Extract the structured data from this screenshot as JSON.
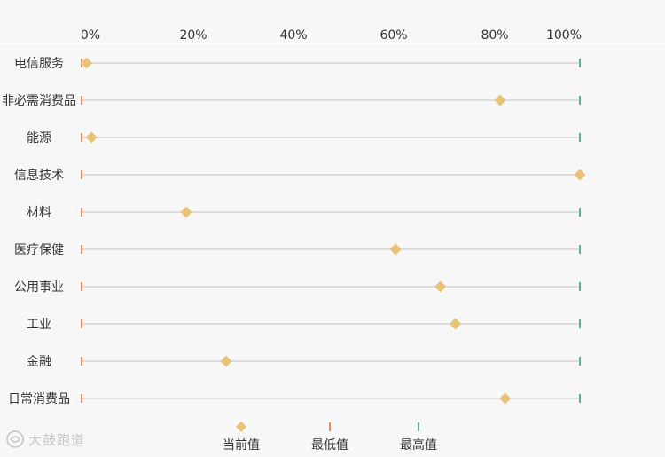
{
  "chart_data": {
    "type": "scatter",
    "subtype": "range-dot-plot",
    "title": "",
    "xlabel": "",
    "ylabel": "",
    "xlim": [
      0,
      100
    ],
    "x_ticks": [
      "0%",
      "20%",
      "40%",
      "60%",
      "80%",
      "100%"
    ],
    "categories": [
      "电信服务",
      "非必需消费品",
      "能源",
      "信息技术",
      "材料",
      "医疗保健",
      "公用事业",
      "工业",
      "金融",
      "日常消费品"
    ],
    "series": [
      {
        "name": "当前值",
        "marker": "diamond",
        "color": "#e8c277",
        "values": [
          1,
          84,
          2,
          100,
          21,
          63,
          72,
          75,
          29,
          85
        ]
      },
      {
        "name": "最低值",
        "marker": "tick",
        "color": "#e48a5c",
        "values": [
          0,
          0,
          0,
          0,
          0,
          0,
          0,
          0,
          0,
          0
        ]
      },
      {
        "name": "最高值",
        "marker": "tick",
        "color": "#5fae96",
        "values": [
          100,
          100,
          100,
          100,
          100,
          100,
          100,
          100,
          100,
          100
        ]
      }
    ],
    "grid": false,
    "legend_position": "bottom-center"
  },
  "colors": {
    "background": "#f7f7f7",
    "range_line": "#dcdcdc",
    "text": "#333333"
  },
  "watermark": {
    "text": "大鼓跑道",
    "icon": "logo-mark-icon"
  }
}
